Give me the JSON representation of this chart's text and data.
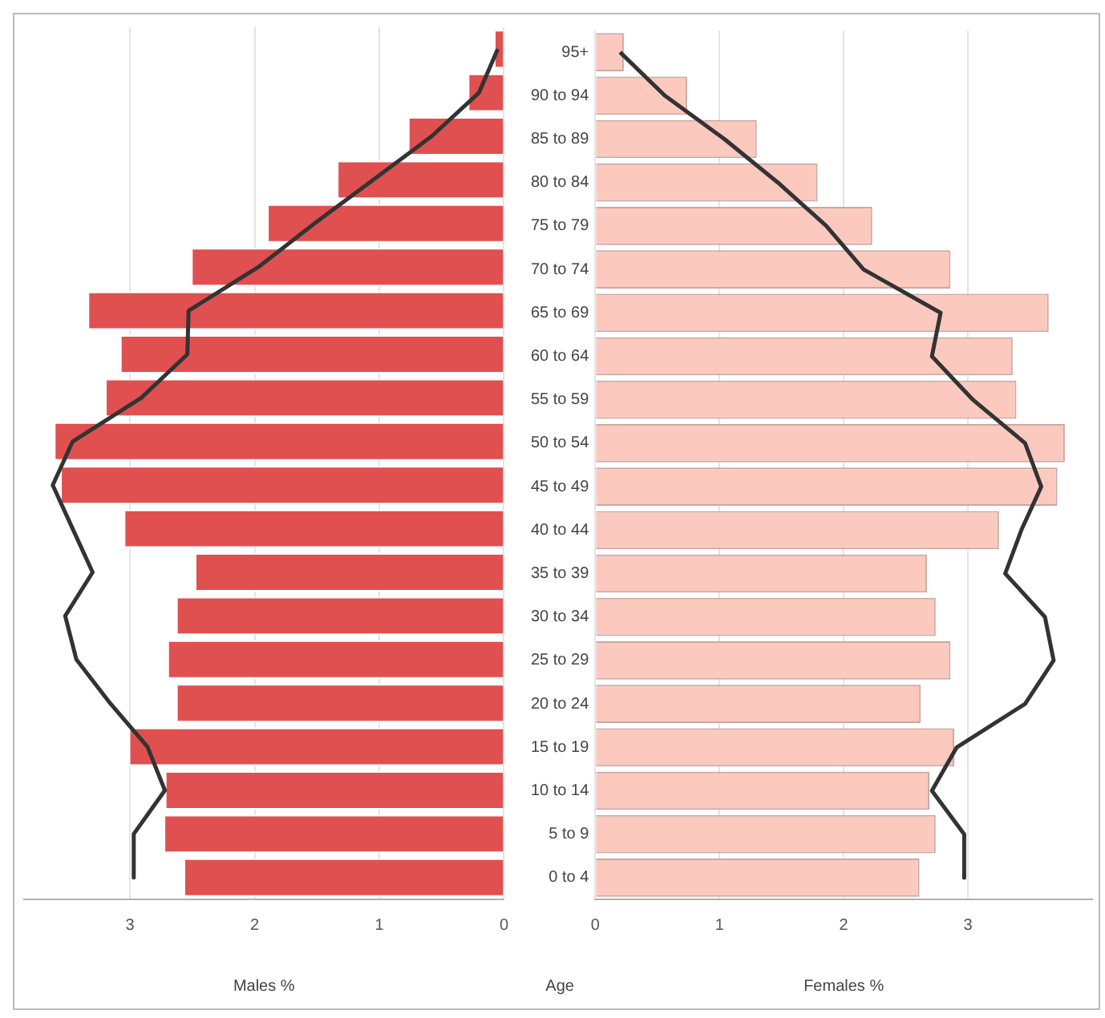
{
  "chart_data": [
    {
      "type": "bar",
      "orientation": "horizontal",
      "categories": [
        null,
        null,
        null,
        null,
        null,
        null,
        null,
        null,
        null,
        null,
        null,
        null,
        null,
        null,
        null,
        null,
        null,
        null,
        null,
        null
      ],
      "xlabel": "Males %",
      "xlim": [
        3.85,
        0
      ],
      "xticks": [
        3,
        2,
        1,
        0
      ],
      "grid": "x",
      "tick_labels": "x",
      "series": [
        {
          "type": "bar",
          "color": "#e05050",
          "values": [
            0.08,
            0.29,
            0.77,
            1.34,
            1.9,
            2.51,
            3.34,
            3.08,
            3.2,
            3.61,
            3.56,
            3.05,
            2.48,
            2.63,
            2.7,
            2.63,
            3.01,
            2.72,
            2.73,
            2.57
          ]
        },
        {
          "type": "line",
          "color": "#333333",
          "values": [
            0.05,
            0.2,
            0.58,
            1.05,
            1.52,
            1.97,
            2.53,
            2.54,
            2.91,
            3.46,
            3.62,
            3.46,
            3.3,
            3.52,
            3.43,
            3.16,
            2.86,
            2.72,
            2.97,
            2.97
          ]
        }
      ]
    },
    {
      "type": "bar",
      "orientation": "horizontal",
      "categories": [
        "95+",
        "90 to 94",
        "85 to 89",
        "80 to 84",
        "75 to 79",
        "70 to 74",
        "65 to 69",
        "60 to 64",
        "55 to 59",
        "50 to 54",
        "45 to 49",
        "40 to 44",
        "35 to 39",
        "30 to 34",
        "25 to 29",
        "20 to 24",
        "15 to 19",
        "10 to 14",
        "5 to 9",
        "0 to 4"
      ],
      "xlabel": "Females %",
      "ylabel": "Age",
      "xlim": [
        0,
        4
      ],
      "xticks": [
        0,
        1,
        2,
        3
      ],
      "grid": "x",
      "series": [
        {
          "type": "bar",
          "color": "#fcc9bf",
          "values": [
            0.23,
            0.74,
            1.3,
            1.79,
            2.23,
            2.86,
            3.65,
            3.36,
            3.39,
            3.78,
            3.72,
            3.25,
            2.67,
            2.74,
            2.86,
            2.62,
            2.89,
            2.69,
            2.74,
            2.61
          ]
        },
        {
          "type": "line",
          "color": "#333333",
          "values": [
            0.2,
            0.56,
            1.04,
            1.47,
            1.86,
            2.16,
            2.78,
            2.71,
            3.04,
            3.46,
            3.59,
            3.43,
            3.3,
            3.62,
            3.69,
            3.46,
            2.91,
            2.71,
            2.97,
            2.97
          ]
        }
      ]
    }
  ]
}
